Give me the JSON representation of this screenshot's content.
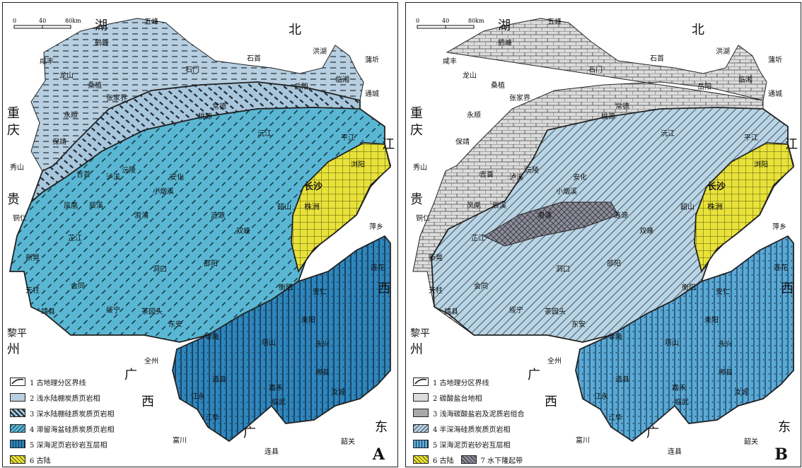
{
  "scale": {
    "labels": [
      "0",
      "40",
      "80km"
    ]
  },
  "provinces": [
    "湖",
    "北",
    "重",
    "庆",
    "贵",
    "州",
    "黎平",
    "江",
    "西",
    "广",
    "西",
    "广",
    "东"
  ],
  "cities": [
    "五峰",
    "鹤峰",
    "咸丰",
    "石首",
    "洪湖",
    "蒲圻",
    "临湘",
    "岳阳",
    "通城",
    "石门",
    "龙山",
    "桑植",
    "张家界",
    "永顺",
    "桃源",
    "常德",
    "保靖",
    "沅江",
    "平江",
    "秀山",
    "吉首",
    "沅陵",
    "安化",
    "浏阳",
    "长沙",
    "泸溪",
    "小烟溪",
    "株洲",
    "凤凰",
    "辰溪",
    "溆浦",
    "韶山",
    "铜仁",
    "涟源",
    "萍乡",
    "芷江",
    "双峰",
    "新晃",
    "洞口",
    "邵阳",
    "莲花",
    "天柱",
    "会同",
    "衡阳",
    "安仁",
    "靖县",
    "绥宁",
    "茶园头",
    "东安",
    "耒阳",
    "零陵",
    "塔山",
    "永兴",
    "全州",
    "郴县",
    "道县",
    "嘉禾",
    "临武",
    "汝城",
    "江永",
    "江华",
    "韶关",
    "富川",
    "连县"
  ],
  "panels": [
    {
      "letter": "A",
      "legend": [
        {
          "label": "1 古地理分区界线",
          "kind": "line"
        },
        {
          "label": "2 浅水陆棚炭质页岩相",
          "kind": "dash",
          "color": "#b7cfe0"
        },
        {
          "label": "3 深水陆棚硅质炭质页岩相",
          "kind": "hatch",
          "color": "#b7cfe0"
        },
        {
          "label": "4 滞留海盆硅质炭质页岩相",
          "kind": "hatch",
          "color": "#5ab7d3"
        },
        {
          "label": "5 深海泥页岩砂岩互层相",
          "kind": "vert",
          "color": "#2f86bd"
        },
        {
          "label": "6 古陆",
          "kind": "grid",
          "color": "#e8e23a"
        }
      ]
    },
    {
      "letter": "B",
      "legend": [
        {
          "label": "1 古地理分区界线",
          "kind": "line"
        },
        {
          "label": "2 碳酸盐台地相",
          "kind": "brick",
          "color": "#dcdcdc"
        },
        {
          "label": "3 浅海碳酸盐岩及泥质岩组合",
          "kind": "brick",
          "color": "#a9a9a9"
        },
        {
          "label": "4 半深海硅质炭质页岩相",
          "kind": "diag",
          "color": "#b9d4e4"
        },
        {
          "label": "5 深海泥页岩砂岩互层相",
          "kind": "vert",
          "color": "#5aaad8"
        },
        {
          "label": "6 古陆",
          "kind": "grid",
          "color": "#e8e23a"
        },
        {
          "label": "7 水下隆起带",
          "kind": "cross",
          "color": "#8c8c9c"
        }
      ]
    }
  ],
  "colors": {
    "a_north": "#b7cfe0",
    "a_band": "#a8c6dc",
    "a_basin": "#5ab7d3",
    "a_deep": "#2f86bd",
    "b_north": "#dcdcdc",
    "b_basin": "#b9d4e4",
    "b_deep": "#5aaad8",
    "land": "#e8e23a",
    "rise": "#8c8c9c"
  }
}
